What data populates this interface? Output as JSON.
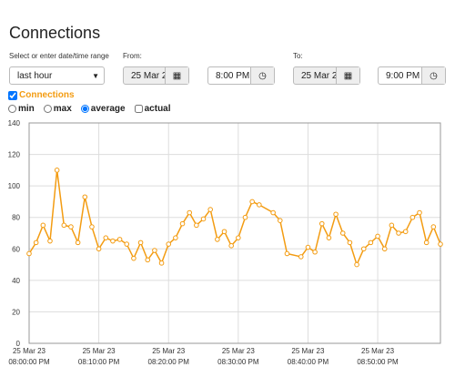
{
  "header": {
    "title": "Connections"
  },
  "controls": {
    "range_label": "Select or enter date/time range",
    "range_value": "last hour",
    "from_label": "From:",
    "from_date": "25 Mar 2",
    "from_time": "8:00 PM",
    "to_label": "To:",
    "to_date": "25 Mar 2",
    "to_time": "9:00 PM",
    "aggregations": [
      "min",
      "max",
      "average"
    ],
    "selected_aggregation": "average",
    "actual_label": "actual"
  },
  "chart_data": {
    "type": "line",
    "x": [
      "08:00:00 PM",
      "08:01:00 PM",
      "08:02:00 PM",
      "08:03:00 PM",
      "08:04:00 PM",
      "08:05:00 PM",
      "08:06:00 PM",
      "08:07:00 PM",
      "08:08:00 PM",
      "08:09:00 PM",
      "08:10:00 PM",
      "08:11:00 PM",
      "08:12:00 PM",
      "08:13:00 PM",
      "08:14:00 PM",
      "08:15:00 PM",
      "08:16:00 PM",
      "08:17:00 PM",
      "08:18:00 PM",
      "08:19:00 PM",
      "08:20:00 PM",
      "08:21:00 PM",
      "08:22:00 PM",
      "08:23:00 PM",
      "08:24:00 PM",
      "08:25:00 PM",
      "08:26:00 PM",
      "08:27:00 PM",
      "08:28:00 PM",
      "08:29:00 PM",
      "08:30:00 PM",
      "08:31:00 PM",
      "08:32:00 PM",
      "08:33:00 PM",
      "08:35:00 PM",
      "08:36:00 PM",
      "08:37:00 PM",
      "08:39:00 PM",
      "08:40:00 PM",
      "08:41:00 PM",
      "08:42:00 PM",
      "08:43:00 PM",
      "08:44:00 PM",
      "08:45:00 PM",
      "08:46:00 PM",
      "08:47:00 PM",
      "08:48:00 PM",
      "08:49:00 PM",
      "08:50:00 PM",
      "08:51:00 PM",
      "08:52:00 PM",
      "08:53:00 PM",
      "08:54:00 PM",
      "08:55:00 PM",
      "08:56:00 PM",
      "08:57:00 PM",
      "08:58:00 PM",
      "08:59:00 PM"
    ],
    "series": [
      {
        "name": "Connections",
        "color": "#f39c12",
        "values": [
          57,
          64,
          75,
          65,
          110,
          75,
          74,
          64,
          93,
          74,
          60,
          67,
          65,
          66,
          63,
          54,
          64,
          53,
          59,
          51,
          63,
          67,
          76,
          83,
          75,
          79,
          85,
          66,
          71,
          62,
          67,
          80,
          90,
          88,
          83,
          78,
          57,
          55,
          61,
          58,
          76,
          67,
          82,
          70,
          64,
          50,
          60,
          64,
          68,
          60,
          75,
          70,
          71,
          80,
          83,
          64,
          74,
          63
        ]
      }
    ],
    "xlim": [
      "08:00:00 PM",
      "08:59:00 PM"
    ],
    "xticks": [
      {
        "value": "08:00:00 PM",
        "label": "25 Mar 23"
      },
      {
        "value": "08:10:00 PM",
        "label": "25 Mar 23"
      },
      {
        "value": "08:20:00 PM",
        "label": "25 Mar 23"
      },
      {
        "value": "08:30:00 PM",
        "label": "25 Mar 23"
      },
      {
        "value": "08:40:00 PM",
        "label": "25 Mar 23"
      },
      {
        "value": "08:50:00 PM",
        "label": "25 Mar 23"
      }
    ],
    "ylim": [
      0,
      140
    ],
    "yticks": [
      0,
      20,
      40,
      60,
      80,
      100,
      120,
      140
    ],
    "grid": true
  }
}
